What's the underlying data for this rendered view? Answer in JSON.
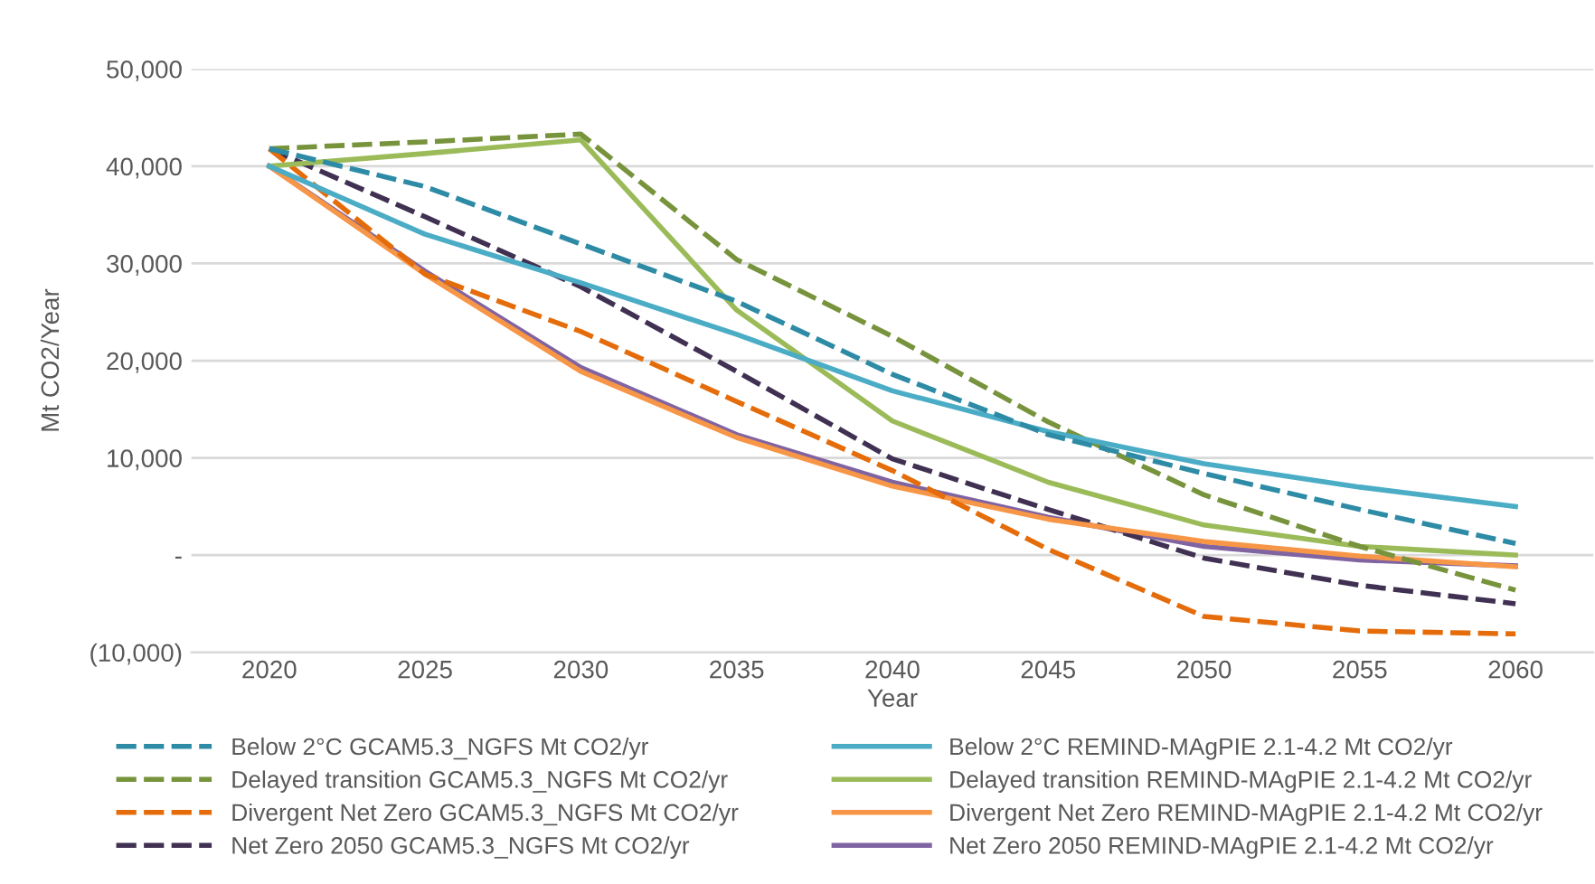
{
  "chart_data": {
    "type": "line",
    "xlabel": "Year",
    "ylabel": "Mt CO2/Year",
    "categories": [
      "2020",
      "2025",
      "2030",
      "2035",
      "2040",
      "2045",
      "2050",
      "2055",
      "2060"
    ],
    "ylim": [
      -10000,
      50000
    ],
    "yticks": [
      {
        "value": -10000,
        "label": "(10,000)"
      },
      {
        "value": 0,
        "label": "-"
      },
      {
        "value": 10000,
        "label": "10,000"
      },
      {
        "value": 20000,
        "label": "20,000"
      },
      {
        "value": 30000,
        "label": "30,000"
      },
      {
        "value": 40000,
        "label": "40,000"
      },
      {
        "value": 50000,
        "label": "50,000"
      }
    ],
    "grid": "y",
    "legend": "bottom",
    "marker": "none",
    "series": [
      {
        "name": "Below 2°C GCAM5.3_NGFS Mt CO2/yr",
        "color": "#2e8ba6",
        "line_style": "dashed",
        "values": [
          41800,
          37900,
          32000,
          26100,
          18600,
          12400,
          8400,
          4700,
          1200
        ]
      },
      {
        "name": "Below 2°C REMIND-MAgPIE 2.1-4.2 Mt CO2/yr",
        "color": "#4bacc6",
        "line_style": "solid",
        "values": [
          40000,
          33000,
          28000,
          22700,
          16900,
          12700,
          9400,
          7000,
          5000
        ]
      },
      {
        "name": "Delayed transition GCAM5.3_NGFS Mt CO2/yr",
        "color": "#77933c",
        "line_style": "dashed",
        "values": [
          41800,
          42500,
          43300,
          30400,
          22500,
          13700,
          6200,
          900,
          -3600
        ]
      },
      {
        "name": "Delayed transition REMIND-MAgPIE 2.1-4.2 Mt CO2/yr",
        "color": "#9bbb59",
        "line_style": "solid",
        "values": [
          40000,
          41300,
          42700,
          25200,
          13800,
          7500,
          3100,
          900,
          0
        ]
      },
      {
        "name": "Divergent Net Zero GCAM5.3_NGFS Mt CO2/yr",
        "color": "#e46c0a",
        "line_style": "dashed",
        "values": [
          41800,
          28900,
          23000,
          15800,
          8700,
          600,
          -6300,
          -7800,
          -8100
        ]
      },
      {
        "name": "Divergent Net Zero REMIND-MAgPIE 2.1-4.2 Mt CO2/yr",
        "color": "#f79646",
        "line_style": "solid",
        "values": [
          40000,
          28900,
          18900,
          12100,
          7100,
          3700,
          1400,
          -100,
          -1200
        ]
      },
      {
        "name": "Net Zero 2050 GCAM5.3_NGFS Mt CO2/yr",
        "color": "#403152",
        "line_style": "dashed",
        "values": [
          41800,
          34800,
          27600,
          18900,
          9900,
          4700,
          -300,
          -3100,
          -5000
        ]
      },
      {
        "name": "Net Zero 2050 REMIND-MAgPIE 2.1-4.2 Mt CO2/yr",
        "color": "#8064a2",
        "line_style": "solid",
        "values": [
          40000,
          29200,
          19300,
          12400,
          7500,
          3900,
          900,
          -500,
          -1100
        ]
      }
    ]
  }
}
